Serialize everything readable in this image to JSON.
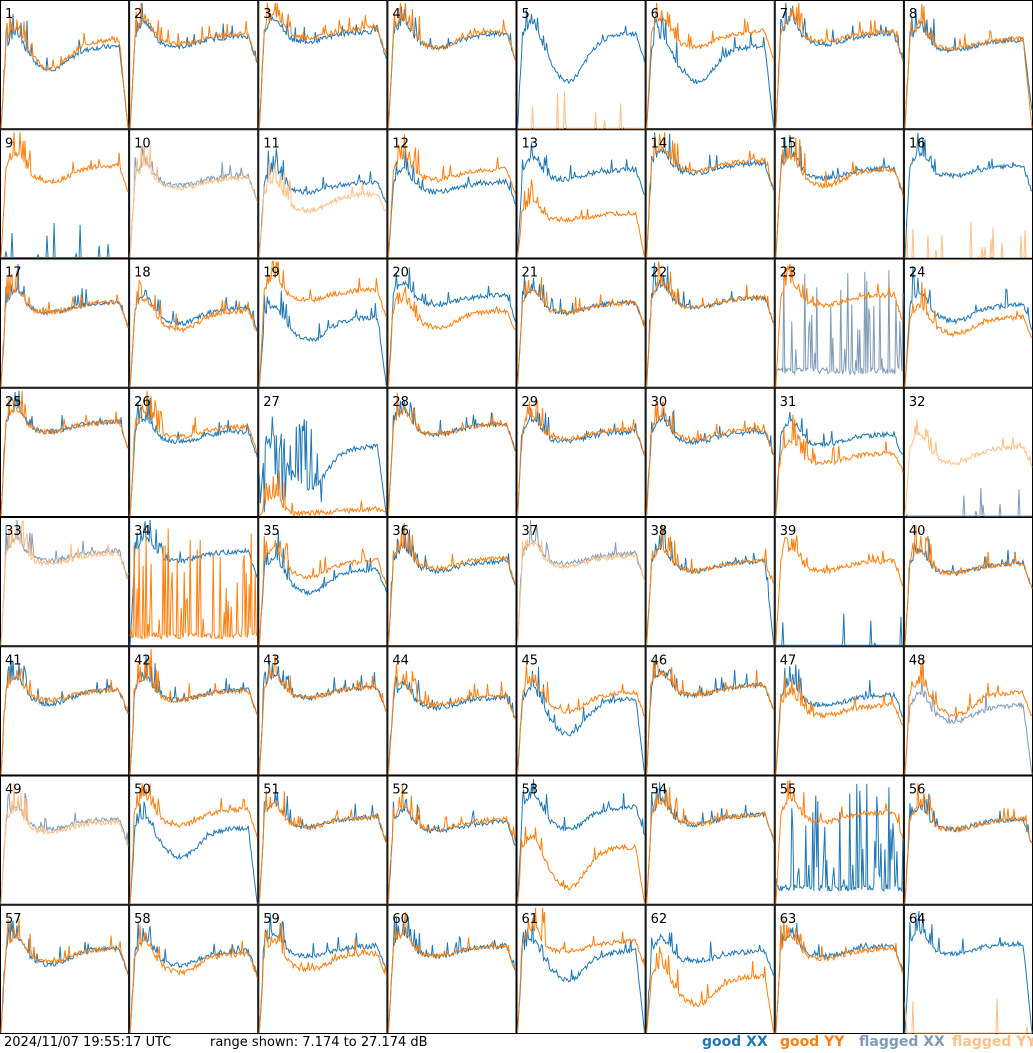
{
  "footer": {
    "timestamp": "2024/11/07 19:55:17 UTC",
    "range_text": "range shown: 7.174 to 27.174 dB"
  },
  "legend": {
    "good_xx": "good XX",
    "good_yy": "good YY",
    "flagged_xx": "flagged XX",
    "flagged_yy": "flagged YY"
  },
  "colors": {
    "good_xx": "#1f77b4",
    "good_yy": "#ff7f0e",
    "flagged_xx": "#7f9bb5",
    "flagged_yy": "#ffbf86",
    "border": "#000000"
  },
  "chart_data": {
    "type": "line",
    "layout": "8x8 small multiples (one panel per antenna)",
    "y_range_db": [
      7.174,
      27.174
    ],
    "series_names": [
      "good XX",
      "good YY",
      "flagged XX",
      "flagged YY"
    ],
    "panels": [
      {
        "id": "1",
        "xx": "good",
        "yy": "good",
        "xx_level": 0.6,
        "yy_level": 0.65,
        "xx_sag": 0.15,
        "yy_sag": 0.2,
        "xx_end_drop": 1.0,
        "yy_end_drop": 1.0
      },
      {
        "id": "2",
        "xx": "good",
        "yy": "good",
        "xx_level": 0.68,
        "yy_level": 0.7,
        "xx_sag": 0.05,
        "yy_sag": 0.05
      },
      {
        "id": "3",
        "xx": "good",
        "yy": "good",
        "xx_level": 0.72,
        "yy_level": 0.75,
        "xx_sag": 0.05,
        "yy_sag": 0.05
      },
      {
        "id": "4",
        "xx": "good",
        "yy": "good",
        "xx_level": 0.7,
        "yy_level": 0.72,
        "xx_sag": 0.08,
        "yy_sag": 0.1
      },
      {
        "id": "5",
        "xx": "good",
        "yy": "flagged_dead",
        "xx_level": 0.7,
        "yy_level": 0.0,
        "xx_sag": 0.35,
        "yy_sag": 0
      },
      {
        "id": "6",
        "xx": "good",
        "yy": "good",
        "xx_level": 0.6,
        "yy_level": 0.72,
        "xx_sag": 0.25,
        "yy_sag": 0.1,
        "xx_end_drop": 1.0
      },
      {
        "id": "7",
        "xx": "good",
        "yy": "good",
        "xx_level": 0.7,
        "yy_level": 0.72,
        "xx_sag": 0.05,
        "yy_sag": 0.05
      },
      {
        "id": "8",
        "xx": "good",
        "yy": "good",
        "xx_level": 0.65,
        "yy_level": 0.66,
        "xx_sag": 0.05,
        "yy_sag": 0.05,
        "xx_end_drop": 0.8,
        "yy_end_drop": 1.0
      },
      {
        "id": "9",
        "xx": "dead",
        "yy": "good",
        "xx_level": 0.0,
        "yy_level": 0.68,
        "xx_sag": 0,
        "yy_sag": 0.1
      },
      {
        "id": "10",
        "xx": "flagged",
        "yy": "flagged",
        "xx_level": 0.6,
        "yy_level": 0.58,
        "xx_sag": 0.05,
        "yy_sag": 0.05
      },
      {
        "id": "11",
        "xx": "good",
        "yy": "flagged",
        "xx_level": 0.55,
        "yy_level": 0.45,
        "xx_sag": 0.05,
        "yy_sag": 0.1
      },
      {
        "id": "12",
        "xx": "good",
        "yy": "good",
        "xx_level": 0.55,
        "yy_level": 0.65,
        "xx_sag": 0.05,
        "yy_sag": 0.05
      },
      {
        "id": "13",
        "xx": "good",
        "yy": "good",
        "xx_level": 0.65,
        "yy_level": 0.3,
        "xx_sag": 0.05,
        "yy_sag": 0.02,
        "yy_end_drop": 1.0
      },
      {
        "id": "14",
        "xx": "good",
        "yy": "good",
        "xx_level": 0.7,
        "yy_level": 0.72,
        "xx_sag": 0.05,
        "yy_sag": 0.05
      },
      {
        "id": "15",
        "xx": "good",
        "yy": "good",
        "xx_level": 0.66,
        "yy_level": 0.65,
        "xx_sag": 0.05,
        "yy_sag": 0.1
      },
      {
        "id": "16",
        "xx": "good",
        "yy": "flagged_dead",
        "xx_level": 0.68,
        "yy_level": 0.0,
        "xx_sag": 0.05,
        "yy_sag": 0
      },
      {
        "id": "17",
        "xx": "good",
        "yy": "good",
        "xx_level": 0.62,
        "yy_level": 0.62,
        "xx_sag": 0.05,
        "yy_sag": 0.05
      },
      {
        "id": "18",
        "xx": "good",
        "yy": "good",
        "xx_level": 0.58,
        "yy_level": 0.55,
        "xx_sag": 0.1,
        "yy_sag": 0.12
      },
      {
        "id": "19",
        "xx": "good",
        "yy": "good",
        "xx_level": 0.5,
        "yy_level": 0.72,
        "xx_sag": 0.15,
        "yy_sag": 0.05,
        "xx_end_drop": 1.0
      },
      {
        "id": "20",
        "xx": "good",
        "yy": "good",
        "xx_level": 0.68,
        "yy_level": 0.55,
        "xx_sag": 0.05,
        "yy_sag": 0.1
      },
      {
        "id": "21",
        "xx": "good",
        "yy": "good",
        "xx_level": 0.62,
        "yy_level": 0.62,
        "xx_sag": 0.05,
        "yy_sag": 0.05
      },
      {
        "id": "22",
        "xx": "good",
        "yy": "good",
        "xx_level": 0.66,
        "yy_level": 0.66,
        "xx_sag": 0.05,
        "yy_sag": 0.05
      },
      {
        "id": "23",
        "xx": "flagged_spiky",
        "yy": "good",
        "xx_level": 0.1,
        "yy_level": 0.68,
        "xx_sag": 0,
        "yy_sag": 0.05
      },
      {
        "id": "24",
        "xx": "good",
        "yy": "good",
        "xx_level": 0.6,
        "yy_level": 0.5,
        "xx_sag": 0.1,
        "yy_sag": 0.1
      },
      {
        "id": "25",
        "xx": "good",
        "yy": "good",
        "xx_level": 0.7,
        "yy_level": 0.7,
        "xx_sag": 0.05,
        "yy_sag": 0.05
      },
      {
        "id": "26",
        "xx": "good",
        "yy": "good",
        "xx_level": 0.62,
        "yy_level": 0.66,
        "xx_sag": 0.05,
        "yy_sag": 0.05
      },
      {
        "id": "27",
        "xx": "good_spiky",
        "yy": "good",
        "xx_level": 0.5,
        "yy_level": 0.0,
        "xx_sag": 0.3,
        "yy_sag": 0,
        "xx_end_drop": 1.0
      },
      {
        "id": "28",
        "xx": "good",
        "yy": "good",
        "xx_level": 0.68,
        "yy_level": 0.68,
        "xx_sag": 0.05,
        "yy_sag": 0.05
      },
      {
        "id": "29",
        "xx": "good",
        "yy": "good",
        "xx_level": 0.62,
        "yy_level": 0.64,
        "xx_sag": 0.05,
        "yy_sag": 0.05
      },
      {
        "id": "30",
        "xx": "good",
        "yy": "good",
        "xx_level": 0.62,
        "yy_level": 0.64,
        "xx_sag": 0.05,
        "yy_sag": 0.05
      },
      {
        "id": "31",
        "xx": "good",
        "yy": "good",
        "xx_level": 0.6,
        "yy_level": 0.45,
        "xx_sag": 0.05,
        "yy_sag": 0.05
      },
      {
        "id": "32",
        "xx": "flagged_dead",
        "yy": "flagged",
        "xx_level": 0.0,
        "yy_level": 0.5,
        "xx_sag": 0,
        "yy_sag": 0.1
      },
      {
        "id": "33",
        "xx": "flagged",
        "yy": "flagged",
        "xx_level": 0.7,
        "yy_level": 0.68,
        "xx_sag": 0.05,
        "yy_sag": 0.05
      },
      {
        "id": "34",
        "xx": "good",
        "yy": "good_spiky_low",
        "xx_level": 0.7,
        "yy_level": 0.05,
        "xx_sag": 0.05,
        "yy_sag": 0
      },
      {
        "id": "35",
        "xx": "good",
        "yy": "good",
        "xx_level": 0.55,
        "yy_level": 0.62,
        "xx_sag": 0.15,
        "yy_sag": 0.1
      },
      {
        "id": "36",
        "xx": "good",
        "yy": "good",
        "xx_level": 0.62,
        "yy_level": 0.64,
        "xx_sag": 0.05,
        "yy_sag": 0.05
      },
      {
        "id": "37",
        "xx": "flagged",
        "yy": "flagged",
        "xx_level": 0.68,
        "yy_level": 0.66,
        "xx_sag": 0.05,
        "yy_sag": 0.05
      },
      {
        "id": "38",
        "xx": "good",
        "yy": "good",
        "xx_level": 0.62,
        "yy_level": 0.62,
        "xx_sag": 0.05,
        "yy_sag": 0.05,
        "xx_end_drop": 1.0
      },
      {
        "id": "39",
        "xx": "dead",
        "yy": "good",
        "xx_level": 0.0,
        "yy_level": 0.62,
        "xx_sag": 0,
        "yy_sag": 0.05
      },
      {
        "id": "40",
        "xx": "good",
        "yy": "good",
        "xx_level": 0.6,
        "yy_level": 0.6,
        "xx_sag": 0.05,
        "yy_sag": 0.05
      },
      {
        "id": "41",
        "xx": "good",
        "yy": "good",
        "xx_level": 0.62,
        "yy_level": 0.62,
        "xx_sag": 0.08,
        "yy_sag": 0.05
      },
      {
        "id": "42",
        "xx": "good",
        "yy": "good",
        "xx_level": 0.62,
        "yy_level": 0.62,
        "xx_sag": 0.05,
        "yy_sag": 0.05
      },
      {
        "id": "43",
        "xx": "good",
        "yy": "good",
        "xx_level": 0.64,
        "yy_level": 0.64,
        "xx_sag": 0.05,
        "yy_sag": 0.05
      },
      {
        "id": "44",
        "xx": "good",
        "yy": "good",
        "xx_level": 0.56,
        "yy_level": 0.58,
        "xx_sag": 0.05,
        "yy_sag": 0.05
      },
      {
        "id": "45",
        "xx": "good",
        "yy": "good",
        "xx_level": 0.55,
        "yy_level": 0.6,
        "xx_sag": 0.25,
        "yy_sag": 0.12,
        "xx_end_drop": 1.0
      },
      {
        "id": "46",
        "xx": "good",
        "yy": "good",
        "xx_level": 0.66,
        "yy_level": 0.66,
        "xx_sag": 0.05,
        "yy_sag": 0.05
      },
      {
        "id": "47",
        "xx": "good",
        "yy": "good",
        "xx_level": 0.58,
        "yy_level": 0.5,
        "xx_sag": 0.05,
        "yy_sag": 0.05
      },
      {
        "id": "48",
        "xx": "flagged",
        "yy": "good",
        "xx_level": 0.5,
        "yy_level": 0.6,
        "xx_sag": 0.1,
        "yy_sag": 0.15,
        "xx_end_drop": 1.0
      },
      {
        "id": "49",
        "xx": "flagged",
        "yy": "flagged",
        "xx_level": 0.62,
        "yy_level": 0.6,
        "xx_sag": 0.05,
        "yy_sag": 0.05
      },
      {
        "id": "50",
        "xx": "good",
        "yy": "good",
        "xx_level": 0.55,
        "yy_level": 0.7,
        "xx_sag": 0.2,
        "yy_sag": 0.1,
        "xx_end_drop": 1.0
      },
      {
        "id": "51",
        "xx": "good",
        "yy": "good",
        "xx_level": 0.64,
        "yy_level": 0.64,
        "xx_sag": 0.05,
        "yy_sag": 0.05
      },
      {
        "id": "52",
        "xx": "good",
        "yy": "good",
        "xx_level": 0.6,
        "yy_level": 0.62,
        "xx_sag": 0.05,
        "yy_sag": 0.05
      },
      {
        "id": "53",
        "xx": "good",
        "yy": "good",
        "xx_level": 0.72,
        "yy_level": 0.4,
        "xx_sag": 0.15,
        "yy_sag": 0.3,
        "yy_end_drop": 1.0
      },
      {
        "id": "54",
        "xx": "good",
        "yy": "good",
        "xx_level": 0.66,
        "yy_level": 0.66,
        "xx_sag": 0.05,
        "yy_sag": 0.05
      },
      {
        "id": "55",
        "xx": "good_spiky",
        "yy": "good",
        "xx_level": 0.1,
        "yy_level": 0.68,
        "xx_sag": 0,
        "yy_sag": 0.05
      },
      {
        "id": "56",
        "xx": "good",
        "yy": "good",
        "xx_level": 0.62,
        "yy_level": 0.62,
        "xx_sag": 0.05,
        "yy_sag": 0.05
      },
      {
        "id": "57",
        "xx": "good",
        "yy": "good",
        "xx_level": 0.62,
        "yy_level": 0.62,
        "xx_sag": 0.1,
        "yy_sag": 0.08
      },
      {
        "id": "58",
        "xx": "good",
        "yy": "good",
        "xx_level": 0.6,
        "yy_level": 0.58,
        "xx_sag": 0.08,
        "yy_sag": 0.12
      },
      {
        "id": "59",
        "xx": "good",
        "yy": "good",
        "xx_level": 0.64,
        "yy_level": 0.58,
        "xx_sag": 0.05,
        "yy_sag": 0.1
      },
      {
        "id": "60",
        "xx": "good",
        "yy": "good",
        "xx_level": 0.64,
        "yy_level": 0.64,
        "xx_sag": 0.05,
        "yy_sag": 0.05
      },
      {
        "id": "61",
        "xx": "good",
        "yy": "good",
        "xx_level": 0.6,
        "yy_level": 0.68,
        "xx_sag": 0.2,
        "yy_sag": 0.05,
        "xx_end_drop": 1.0
      },
      {
        "id": "62",
        "xx": "good",
        "yy": "good",
        "xx_level": 0.6,
        "yy_level": 0.4,
        "xx_sag": 0.05,
        "yy_sag": 0.2,
        "yy_end_drop": 1.0
      },
      {
        "id": "63",
        "xx": "good",
        "yy": "good",
        "xx_level": 0.64,
        "yy_level": 0.62,
        "xx_sag": 0.05,
        "yy_sag": 0.05
      },
      {
        "id": "64",
        "xx": "good",
        "yy": "flagged_dead",
        "xx_level": 0.66,
        "yy_level": 0.0,
        "xx_sag": 0.05,
        "yy_sag": 0,
        "xx_end_drop": 1.0
      }
    ]
  }
}
